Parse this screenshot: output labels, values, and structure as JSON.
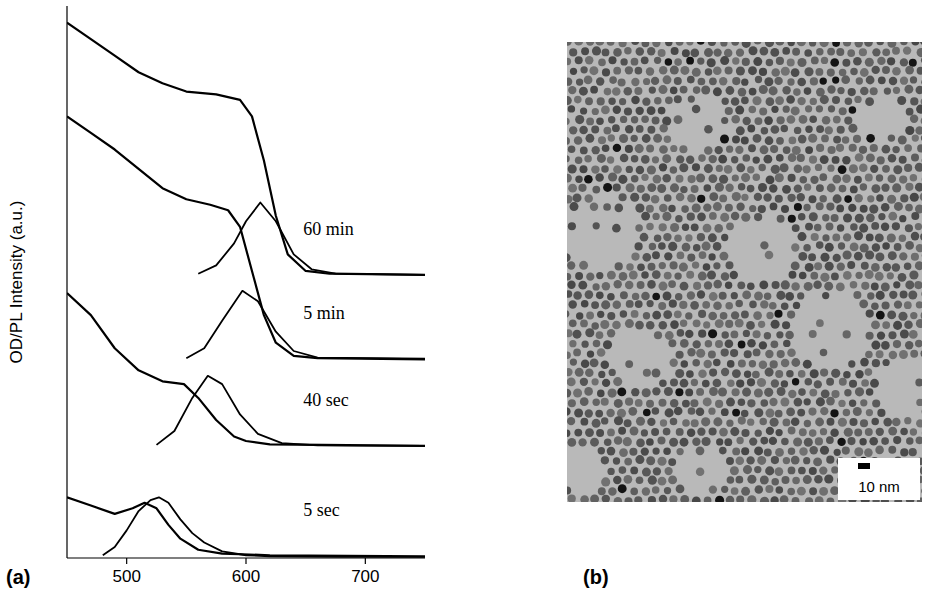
{
  "chart_data": [
    {
      "type": "line",
      "title": "(a)",
      "y_label": "OD/PL Intensity (a.u.)",
      "xlim": [
        450,
        750
      ],
      "xticks": [
        500,
        600,
        700
      ],
      "ylim": [
        0,
        100
      ],
      "tick_labels": "x",
      "grid": false,
      "series": [
        {
          "name": "5 sec",
          "color": "#000000",
          "line_style": "solid",
          "x": [
            450,
            470,
            490,
            505,
            515,
            525,
            535,
            545,
            560,
            580,
            620,
            750
          ],
          "values": [
            11,
            9.5,
            8,
            9,
            10,
            9,
            6,
            3.5,
            1.5,
            0.8,
            0.5,
            0.3
          ]
        },
        {
          "color": "#000000",
          "line_style": "solid",
          "x": [
            480,
            490,
            500,
            510,
            520,
            527,
            535,
            545,
            555,
            565,
            580,
            600,
            620,
            680,
            750
          ],
          "values": [
            0.5,
            2,
            5,
            8.5,
            10.5,
            11,
            10,
            7,
            4.5,
            2.8,
            1.2,
            0.5,
            0.3,
            0.2,
            0.2
          ]
        },
        {
          "name": "40 sec",
          "color": "#000000",
          "line_style": "solid",
          "x": [
            450,
            470,
            490,
            510,
            530,
            548,
            560,
            575,
            590,
            600,
            620,
            750
          ],
          "values": [
            48,
            44,
            38,
            34,
            32,
            31.5,
            29,
            25,
            22,
            21.2,
            20.6,
            20.3
          ]
        },
        {
          "color": "#000000",
          "line_style": "solid",
          "x": [
            525,
            540,
            555,
            568,
            580,
            595,
            610,
            630,
            660,
            750
          ],
          "values": [
            20.5,
            23,
            29,
            33,
            31.5,
            26,
            22.5,
            20.8,
            20.4,
            20.3
          ]
        },
        {
          "name": "5 min",
          "color": "#000000",
          "line_style": "solid",
          "x": [
            450,
            470,
            490,
            510,
            530,
            550,
            570,
            585,
            595,
            605,
            615,
            625,
            640,
            660,
            750
          ],
          "values": [
            80,
            77,
            74,
            70.5,
            67,
            65,
            64,
            63,
            60,
            52,
            44,
            39,
            36.6,
            36.2,
            36
          ]
        },
        {
          "color": "#000000",
          "line_style": "solid",
          "x": [
            550,
            565,
            580,
            597,
            610,
            625,
            640,
            660,
            750
          ],
          "values": [
            36.2,
            38,
            43,
            48.4,
            46.5,
            41,
            37.5,
            36.3,
            36.1
          ]
        },
        {
          "name": "60 min",
          "color": "#000000",
          "line_style": "solid",
          "x": [
            450,
            470,
            490,
            510,
            530,
            550,
            575,
            595,
            605,
            615,
            625,
            635,
            650,
            670,
            750
          ],
          "values": [
            97,
            94,
            91,
            88,
            86,
            84.5,
            84,
            83,
            80,
            72,
            62,
            55,
            52,
            51.5,
            51.3
          ]
        },
        {
          "color": "#000000",
          "line_style": "solid",
          "x": [
            560,
            575,
            590,
            600,
            612,
            625,
            640,
            655,
            675,
            750
          ],
          "values": [
            51.5,
            53,
            57,
            61,
            64.4,
            61,
            55,
            52.3,
            51.5,
            51.3
          ]
        }
      ]
    },
    {
      "type": "image",
      "title": "(b)",
      "annotations": [
        "10 nm"
      ]
    }
  ]
}
